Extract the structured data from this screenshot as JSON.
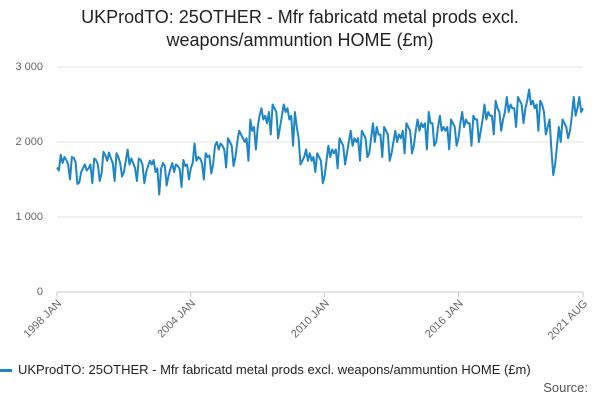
{
  "chart_data": {
    "type": "line",
    "title": "UKProdTO: 25OTHER - Mfr fabricatd metal prods excl. weapons/ammuntion HOME (£m)",
    "source_label": "Source:",
    "categories": [
      "1998 JAN",
      null,
      null,
      null,
      null,
      null,
      null,
      null,
      null,
      null,
      null,
      null,
      null,
      null,
      null,
      null,
      null,
      null,
      null,
      null,
      null,
      null,
      null,
      null,
      null,
      null,
      null,
      null,
      null,
      null,
      null,
      null,
      null,
      null,
      null,
      null,
      null,
      null,
      null,
      null,
      null,
      null,
      null,
      null,
      null,
      null,
      null,
      null,
      null,
      null,
      null,
      null,
      null,
      null,
      null,
      null,
      null,
      null,
      null,
      null,
      null,
      null,
      null,
      null,
      null,
      null,
      null,
      null,
      null,
      null,
      null,
      null,
      "2004 JAN",
      null,
      null,
      null,
      null,
      null,
      null,
      null,
      null,
      null,
      null,
      null,
      null,
      null,
      null,
      null,
      null,
      null,
      null,
      null,
      null,
      null,
      null,
      null,
      null,
      null,
      null,
      null,
      null,
      null,
      null,
      null,
      null,
      null,
      null,
      null,
      null,
      null,
      null,
      null,
      null,
      null,
      null,
      null,
      null,
      null,
      null,
      null,
      null,
      null,
      null,
      null,
      null,
      null,
      null,
      null,
      null,
      null,
      null,
      null,
      null,
      null,
      null,
      null,
      null,
      null,
      null,
      null,
      null,
      null,
      null,
      null,
      "2010 JAN",
      null,
      null,
      null,
      null,
      null,
      null,
      null,
      null,
      null,
      null,
      null,
      null,
      null,
      null,
      null,
      null,
      null,
      null,
      null,
      null,
      null,
      null,
      null,
      null,
      null,
      null,
      null,
      null,
      null,
      null,
      null,
      null,
      null,
      null,
      null,
      null,
      null,
      null,
      null,
      null,
      null,
      null,
      null,
      null,
      null,
      null,
      null,
      null,
      null,
      null,
      null,
      null,
      null,
      null,
      null,
      null,
      null,
      null,
      null,
      null,
      null,
      null,
      null,
      null,
      null,
      null,
      null,
      null,
      null,
      null,
      null,
      "2016 JAN",
      null,
      null,
      null,
      null,
      null,
      null,
      null,
      null,
      null,
      null,
      null,
      null,
      null,
      null,
      null,
      null,
      null,
      null,
      null,
      null,
      null,
      null,
      null,
      null,
      null,
      null,
      null,
      null,
      null,
      null,
      null,
      null,
      null,
      null,
      null,
      null,
      null,
      null,
      null,
      null,
      null,
      null,
      null,
      null,
      null,
      null,
      null,
      null,
      null,
      null,
      null,
      null,
      null,
      null,
      null,
      null,
      null,
      null,
      null,
      null,
      null,
      null,
      null,
      null,
      null,
      null,
      "2021 AUG"
    ],
    "series": [
      {
        "name": "UKProdTO: 25OTHER - Mfr fabricatd metal prods excl. weapons/ammuntion HOME (£m)",
        "color": "#1f86c6",
        "values": [
          1660,
          1620,
          1830,
          1720,
          1800,
          1760,
          1700,
          1500,
          1800,
          1790,
          1730,
          1440,
          1460,
          1600,
          1650,
          1700,
          1620,
          1650,
          1700,
          1450,
          1780,
          1760,
          1700,
          1480,
          1580,
          1870,
          1820,
          1750,
          1860,
          1780,
          1720,
          1480,
          1850,
          1800,
          1720,
          1540,
          1600,
          1750,
          1900,
          1700,
          1780,
          1720,
          1650,
          1480,
          1780,
          1760,
          1700,
          1450,
          1600,
          1680,
          1750,
          1700,
          1760,
          1600,
          1650,
          1300,
          1640,
          1720,
          1680,
          1420,
          1550,
          1640,
          1720,
          1600,
          1700,
          1680,
          1640,
          1400,
          1760,
          1680,
          1700,
          1500,
          1650,
          1720,
          1980,
          1750,
          1800,
          1780,
          1720,
          1500,
          1850,
          1800,
          1820,
          1580,
          1700,
          1950,
          2000,
          1900,
          1980,
          1950,
          1900,
          1660,
          2050,
          2000,
          1950,
          1680,
          1800,
          2000,
          2150,
          2100,
          2050,
          2000,
          2050,
          1750,
          2300,
          2150,
          2200,
          1900,
          2200,
          2350,
          2450,
          2300,
          2350,
          2250,
          2400,
          2100,
          2500,
          2450,
          2400,
          2050,
          2200,
          2350,
          2500,
          2400,
          2450,
          2300,
          2350,
          1950,
          2400,
          2200,
          2050,
          1700,
          1750,
          1800,
          1900,
          1750,
          1850,
          1750,
          1800,
          1600,
          1850,
          1800,
          1750,
          1450,
          1550,
          1750,
          1950,
          1800,
          1900,
          1850,
          1900,
          1650,
          2050,
          2000,
          1950,
          1700,
          1850,
          2000,
          2150,
          1950,
          2050,
          2000,
          2050,
          1750,
          2150,
          2100,
          2050,
          1800,
          1850,
          2050,
          2250,
          2000,
          2200,
          2100,
          2100,
          1800,
          2200,
          2150,
          2100,
          1750,
          1850,
          2000,
          2150,
          2000,
          2100,
          2050,
          2150,
          1850,
          2250,
          2200,
          2150,
          1850,
          1950,
          2150,
          2300,
          2150,
          2250,
          2200,
          2250,
          1900,
          2400,
          2250,
          2250,
          1950,
          2000,
          2200,
          2350,
          2150,
          2200,
          2150,
          2200,
          1900,
          2300,
          2250,
          2200,
          1950,
          2050,
          2250,
          2400,
          2200,
          2300,
          2250,
          2250,
          1950,
          2350,
          2300,
          2300,
          2000,
          2150,
          2300,
          2500,
          2300,
          2400,
          2350,
          2350,
          2100,
          2550,
          2450,
          2400,
          2150,
          2300,
          2400,
          2600,
          2400,
          2500,
          2450,
          2450,
          2200,
          2600,
          2550,
          2500,
          2250,
          2450,
          2550,
          2700,
          2500,
          2550,
          2450,
          2500,
          2150,
          2550,
          2500,
          2400,
          2100,
          2200,
          2300,
          1900,
          1560,
          1700,
          1950,
          2200,
          2000,
          2300,
          2250,
          2200,
          2050,
          2150,
          2350,
          2600,
          2350,
          2450,
          2600,
          2400,
          2450
        ]
      }
    ],
    "ylim": [
      0,
      3000
    ],
    "yticks": [
      0,
      {
        "value": 1000,
        "label": "1 000"
      },
      {
        "value": 2000,
        "label": "2 000"
      },
      {
        "value": 3000,
        "label": "3 000"
      }
    ],
    "grid": true
  }
}
